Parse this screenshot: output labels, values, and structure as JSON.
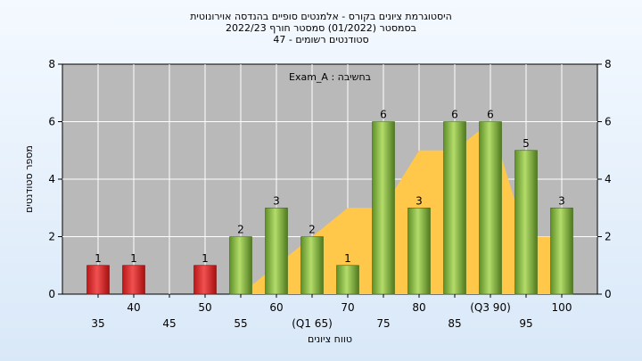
{
  "chart_data": {
    "type": "bar",
    "title_lines": [
      "היסטוגרמת ציונים בקורס - אלמנטים סופיים בהנדסה אוירונוטית",
      "בסמסטר  (01/2022)  סמסטר חורף 2022/23",
      "סטודנטים רשומים - 47"
    ],
    "legend_text": "Exam_A : בחשיבה",
    "ylabel": "מספר סטודנטים",
    "xlabel": "טווח ציונים",
    "ylim": [
      0,
      8
    ],
    "yticks": [
      "0",
      "2",
      "4",
      "6",
      "8"
    ],
    "x_labels_upper": [
      "40",
      "50",
      "60",
      "70",
      "80",
      "(Q3 90)",
      "100"
    ],
    "x_labels_lower": [
      "35",
      "45",
      "55",
      "(Q1 65)",
      "75",
      "85",
      "95"
    ],
    "categories": [
      "35",
      "40",
      "45",
      "50",
      "55",
      "60",
      "65",
      "70",
      "75",
      "80",
      "85",
      "90",
      "95",
      "100"
    ],
    "values": [
      1,
      1,
      0,
      1,
      2,
      3,
      2,
      1,
      6,
      3,
      6,
      6,
      5,
      3
    ],
    "value_labels": [
      "1",
      "1",
      "",
      "1",
      "2",
      "3",
      "2",
      "1",
      "6",
      "3",
      "6",
      "6",
      "5",
      "3"
    ],
    "bar_kind": [
      "fail",
      "fail",
      "fail",
      "fail",
      "pass",
      "pass",
      "pass",
      "pass",
      "pass",
      "pass",
      "pass",
      "pass",
      "pass",
      "pass"
    ],
    "cumulative_area": [
      0,
      0,
      0,
      0,
      0,
      1,
      2,
      3,
      3,
      5,
      5,
      6,
      2,
      2
    ],
    "colors": {
      "fail": "#dd2a2a",
      "pass": "#8ab84a",
      "area": "#ffc84a",
      "plot_bg": "#b9b9b9"
    },
    "grid": true
  }
}
